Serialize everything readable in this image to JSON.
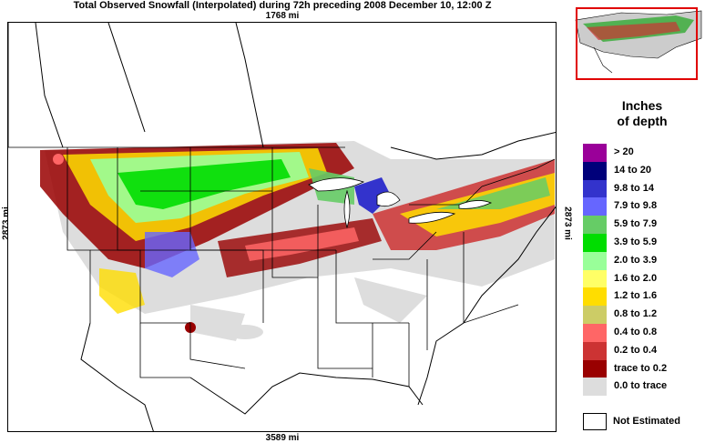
{
  "title": "Total Observed Snowfall (Interpolated) during 72h preceding 2008 December 10, 12:00 Z",
  "dimensions": {
    "top": "1768 mi",
    "bottom": "3589 mi",
    "left": "2873 mi",
    "right": "2873 mi"
  },
  "legend": {
    "title_line1": "Inches",
    "title_line2": "of depth",
    "items": [
      {
        "label": ">   20",
        "color": "#9a0099"
      },
      {
        "label": "14 to   20",
        "color": "#00007a"
      },
      {
        "label": "9.8 to   14",
        "color": "#3333cc"
      },
      {
        "label": "7.9 to  9.8",
        "color": "#6666ff"
      },
      {
        "label": "5.9 to  7.9",
        "color": "#66cc66"
      },
      {
        "label": "3.9 to  5.9",
        "color": "#00dd00"
      },
      {
        "label": "2.0 to  3.9",
        "color": "#99ff99"
      },
      {
        "label": "1.6 to  2.0",
        "color": "#ffff66"
      },
      {
        "label": "1.2 to  1.6",
        "color": "#ffdd00"
      },
      {
        "label": "0.8 to  1.2",
        "color": "#cccc66"
      },
      {
        "label": "0.4 to  0.8",
        "color": "#ff6666"
      },
      {
        "label": "0.2 to  0.4",
        "color": "#cc3333"
      },
      {
        "label": "trace to   0.2",
        "color": "#990000"
      },
      {
        "label": "0.0 to trace",
        "color": "#dddddd"
      }
    ],
    "not_estimated": {
      "label": "Not Estimated",
      "color": "#ffffff"
    }
  },
  "colors": {
    "inset_border": "#e00000",
    "map_lines": "#000000"
  }
}
